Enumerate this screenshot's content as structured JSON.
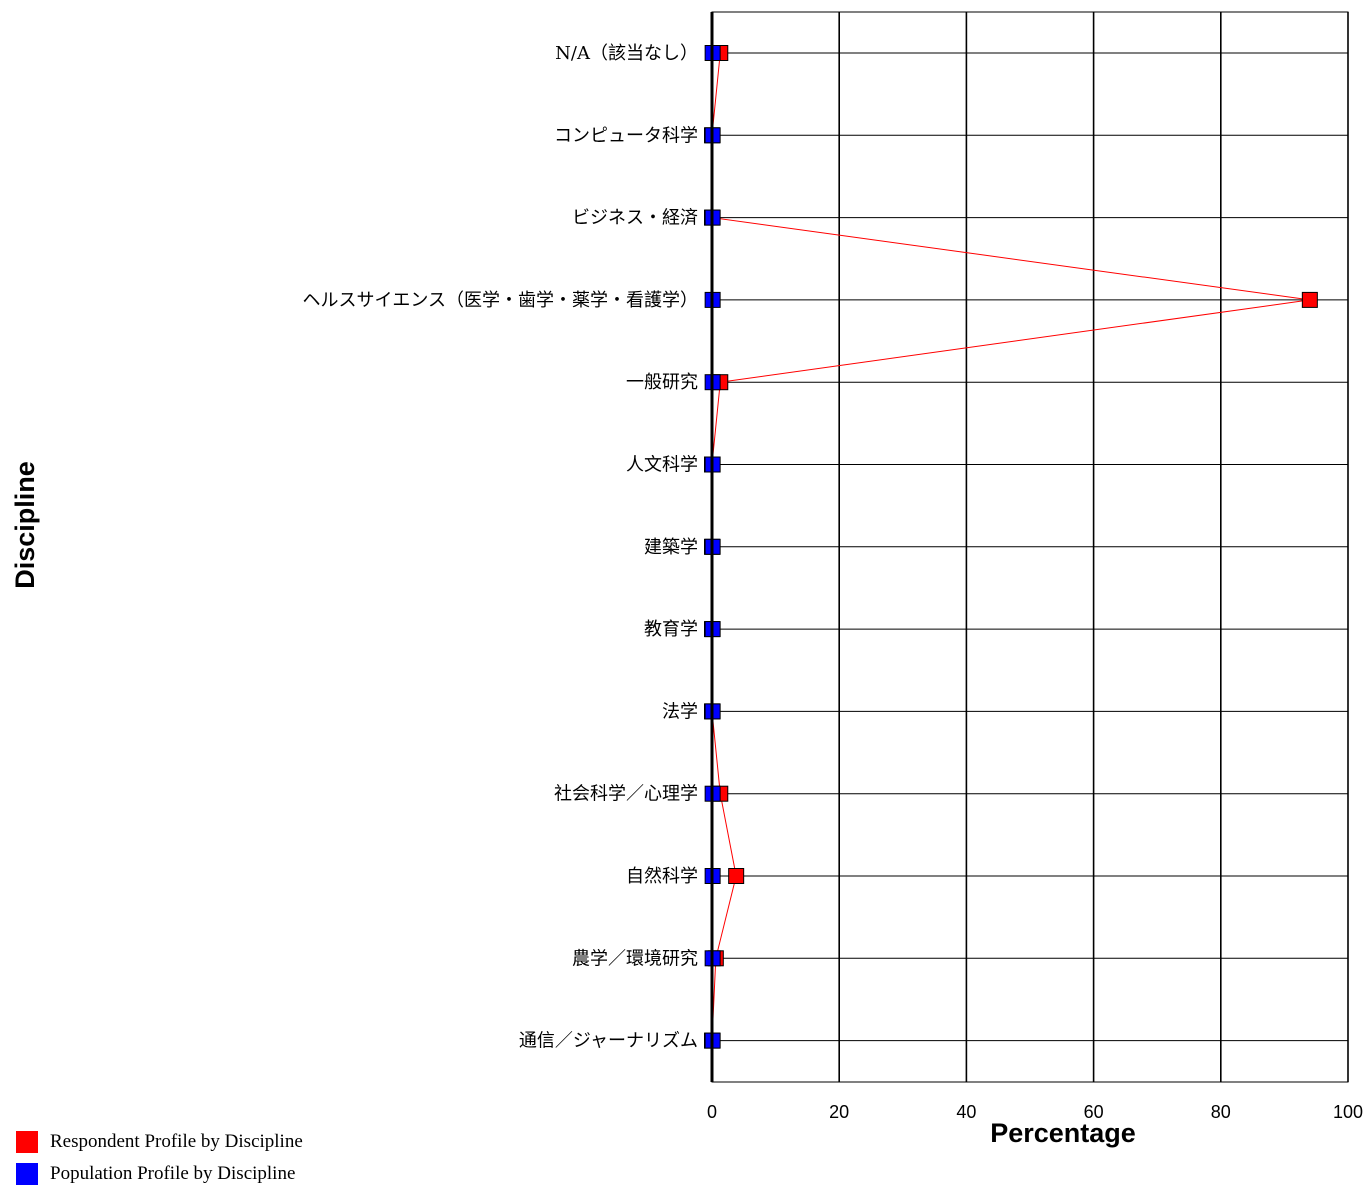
{
  "chart_data": {
    "type": "line",
    "orientation": "horizontal",
    "title": "",
    "xlabel": "Percentage",
    "ylabel": "Discipline",
    "xlim": [
      0,
      100
    ],
    "xticks": [
      0,
      20,
      40,
      60,
      80,
      100
    ],
    "categories": [
      "N/A（該当なし）",
      "コンピュータ科学",
      "ビジネス・経済",
      "ヘルスサイエンス（医学・歯学・薬学・看護学）",
      "一般研究",
      "人文科学",
      "建築学",
      "教育学",
      "法学",
      "社会科学／心理学",
      "自然科学",
      "農学／環境研究",
      "通信／ジャーナリズム"
    ],
    "series": [
      {
        "name": "Respondent Profile by Discipline",
        "color": "#ff0000",
        "values": [
          1.3,
          0,
          0,
          94,
          1.3,
          0,
          0,
          0,
          0,
          1.3,
          3.8,
          0.6,
          0
        ]
      },
      {
        "name": "Population Profile by Discipline",
        "color": "#0000ff",
        "values": [
          0.1,
          0.1,
          0.1,
          0.1,
          0.1,
          0.1,
          0.1,
          0.1,
          0.1,
          0.1,
          0.1,
          0.1,
          0.1
        ]
      }
    ],
    "grid": true,
    "legend_position": "bottom-left"
  }
}
